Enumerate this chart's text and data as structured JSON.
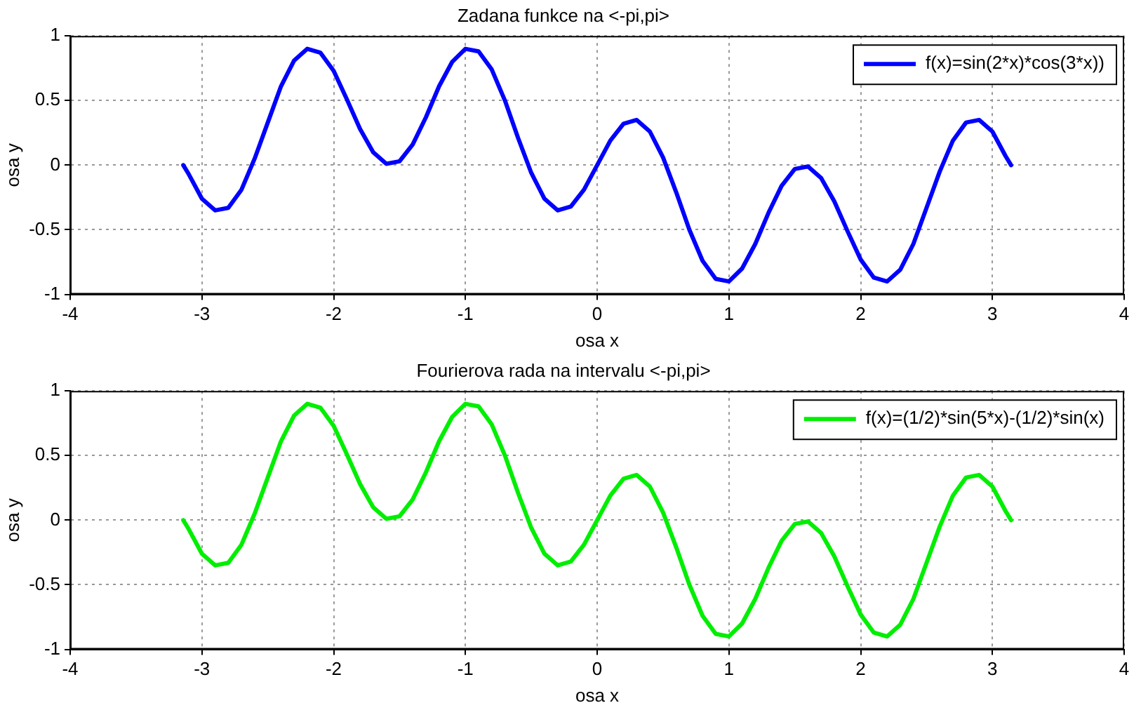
{
  "chart_data": [
    {
      "type": "line",
      "title": "Zadana funkce na <-pi,pi>",
      "xlabel": "osa x",
      "ylabel": "osa y",
      "x": [
        -3.1416,
        -3.1,
        -3.0,
        -2.9,
        -2.8,
        -2.7,
        -2.6,
        -2.5,
        -2.4,
        -2.3,
        -2.2,
        -2.1,
        -2.0,
        -1.9,
        -1.8,
        -1.7,
        -1.6,
        -1.5,
        -1.4,
        -1.3,
        -1.2,
        -1.1,
        -1.0,
        -0.9,
        -0.8,
        -0.7,
        -0.6,
        -0.5,
        -0.4,
        -0.3,
        -0.2,
        -0.1,
        0,
        0.1,
        0.2,
        0.3,
        0.4,
        0.5,
        0.6,
        0.7,
        0.8,
        0.9,
        1.0,
        1.1,
        1.2,
        1.3,
        1.4,
        1.5,
        1.6,
        1.7,
        1.8,
        1.9,
        2.0,
        2.1,
        2.2,
        2.3,
        2.4,
        2.5,
        2.6,
        2.7,
        2.8,
        2.9,
        3.0,
        3.1,
        3.1416
      ],
      "series": [
        {
          "name": "f(x)=sin(2*x)*cos(3*x))",
          "color": "#0000ff",
          "values": [
            0,
            -0.07,
            -0.26,
            -0.35,
            -0.33,
            -0.19,
            0.05,
            0.33,
            0.61,
            0.81,
            0.9,
            0.87,
            0.73,
            0.51,
            0.28,
            0.1,
            0.01,
            0.03,
            0.16,
            0.37,
            0.61,
            0.8,
            0.9,
            0.88,
            0.74,
            0.5,
            0.21,
            -0.06,
            -0.26,
            -0.35,
            -0.32,
            -0.19,
            0,
            0.19,
            0.32,
            0.35,
            0.26,
            0.06,
            -0.21,
            -0.5,
            -0.74,
            -0.88,
            -0.9,
            -0.8,
            -0.61,
            -0.37,
            -0.16,
            -0.03,
            -0.01,
            -0.1,
            -0.28,
            -0.51,
            -0.73,
            -0.87,
            -0.9,
            -0.81,
            -0.61,
            -0.33,
            -0.05,
            0.19,
            0.33,
            0.35,
            0.26,
            0.07,
            0
          ]
        }
      ],
      "xlim": [
        -4,
        4
      ],
      "xticks": [
        -4,
        -3,
        -2,
        -1,
        0,
        1,
        2,
        3,
        4
      ],
      "ylim": [
        -1,
        1
      ],
      "yticks": [
        -1,
        -0.5,
        0,
        0.5,
        1
      ],
      "grid": true,
      "legend": "top right",
      "line_style": "solid",
      "marker": "none"
    },
    {
      "type": "line",
      "title": "Fourierova rada na intervalu <-pi,pi>",
      "xlabel": "osa x",
      "ylabel": "osa y",
      "x": [
        -3.1416,
        -3.1,
        -3.0,
        -2.9,
        -2.8,
        -2.7,
        -2.6,
        -2.5,
        -2.4,
        -2.3,
        -2.2,
        -2.1,
        -2.0,
        -1.9,
        -1.8,
        -1.7,
        -1.6,
        -1.5,
        -1.4,
        -1.3,
        -1.2,
        -1.1,
        -1.0,
        -0.9,
        -0.8,
        -0.7,
        -0.6,
        -0.5,
        -0.4,
        -0.3,
        -0.2,
        -0.1,
        0,
        0.1,
        0.2,
        0.3,
        0.4,
        0.5,
        0.6,
        0.7,
        0.8,
        0.9,
        1.0,
        1.1,
        1.2,
        1.3,
        1.4,
        1.5,
        1.6,
        1.7,
        1.8,
        1.9,
        2.0,
        2.1,
        2.2,
        2.3,
        2.4,
        2.5,
        2.6,
        2.7,
        2.8,
        2.9,
        3.0,
        3.1,
        3.1416
      ],
      "series": [
        {
          "name": "f(x)=(1/2)*sin(5*x)-(1/2)*sin(x)",
          "color": "#00ee00",
          "values": [
            0,
            -0.07,
            -0.26,
            -0.35,
            -0.33,
            -0.19,
            0.05,
            0.33,
            0.61,
            0.81,
            0.9,
            0.87,
            0.73,
            0.51,
            0.28,
            0.1,
            0.01,
            0.03,
            0.16,
            0.37,
            0.61,
            0.8,
            0.9,
            0.88,
            0.74,
            0.5,
            0.21,
            -0.06,
            -0.26,
            -0.35,
            -0.32,
            -0.19,
            0,
            0.19,
            0.32,
            0.35,
            0.26,
            0.06,
            -0.21,
            -0.5,
            -0.74,
            -0.88,
            -0.9,
            -0.8,
            -0.61,
            -0.37,
            -0.16,
            -0.03,
            -0.01,
            -0.1,
            -0.28,
            -0.51,
            -0.73,
            -0.87,
            -0.9,
            -0.81,
            -0.61,
            -0.33,
            -0.05,
            0.19,
            0.33,
            0.35,
            0.26,
            0.07,
            0
          ]
        }
      ],
      "xlim": [
        -4,
        4
      ],
      "xticks": [
        -4,
        -3,
        -2,
        -1,
        0,
        1,
        2,
        3,
        4
      ],
      "ylim": [
        -1,
        1
      ],
      "yticks": [
        -1,
        -0.5,
        0,
        0.5,
        1
      ],
      "grid": true,
      "legend": "top right",
      "line_style": "solid",
      "marker": "none"
    }
  ]
}
